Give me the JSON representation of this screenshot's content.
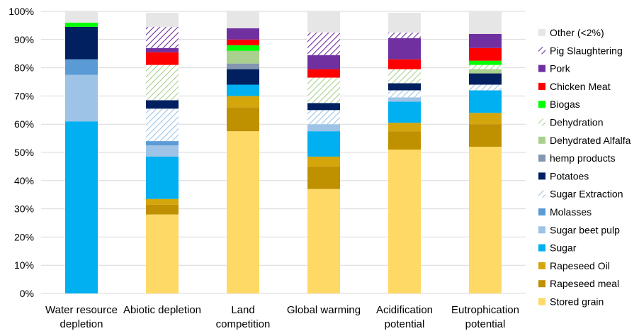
{
  "chart_data": {
    "type": "bar",
    "stacked": true,
    "normalized": true,
    "title": "",
    "xlabel": "",
    "ylabel": "",
    "ylim": [
      0,
      100
    ],
    "y_ticks": [
      "0%",
      "10%",
      "20%",
      "30%",
      "40%",
      "50%",
      "60%",
      "70%",
      "80%",
      "90%",
      "100%"
    ],
    "grid": "horizontal",
    "legend_position": "right",
    "categories": [
      [
        "Water resource",
        "depletion"
      ],
      [
        "Abiotic depletion"
      ],
      [
        "Land",
        "competition"
      ],
      [
        "Global warming"
      ],
      [
        "Acidification",
        "potential"
      ],
      [
        "Eutrophication",
        "potential"
      ]
    ],
    "series": [
      {
        "name": "Stored grain",
        "color": "#FFD966",
        "pattern": "solid",
        "values": [
          0,
          28,
          57.5,
          37,
          51,
          52
        ]
      },
      {
        "name": "Rapeseed meal",
        "color": "#BF9000",
        "pattern": "solid",
        "values": [
          0,
          3.5,
          8.5,
          8,
          6.5,
          8
        ]
      },
      {
        "name": "Rapeseed Oil",
        "color": "#D4A60C",
        "pattern": "solid",
        "values": [
          0,
          2,
          4,
          3.5,
          3,
          4
        ]
      },
      {
        "name": "Sugar",
        "color": "#00B0F0",
        "pattern": "solid",
        "values": [
          61,
          15,
          4,
          9,
          7.5,
          8
        ]
      },
      {
        "name": "Sugar beet pulp",
        "color": "#9DC3E6",
        "pattern": "solid",
        "values": [
          16.5,
          4,
          0,
          2.5,
          1.5,
          0
        ]
      },
      {
        "name": "Molasses",
        "color": "#5B9BD5",
        "pattern": "solid",
        "values": [
          5.5,
          1.5,
          0,
          0,
          0,
          0
        ]
      },
      {
        "name": "Sugar Extraction",
        "color": "#9DC3E6",
        "pattern": "hatch",
        "values": [
          0,
          11.5,
          0,
          5,
          2.5,
          2
        ]
      },
      {
        "name": "Potatoes",
        "color": "#002060",
        "pattern": "solid",
        "values": [
          11.5,
          3,
          5.5,
          2.5,
          2.5,
          4
        ]
      },
      {
        "name": "hemp products",
        "color": "#8497B0",
        "pattern": "solid",
        "values": [
          0,
          0,
          2,
          0,
          0,
          0
        ]
      },
      {
        "name": "Dehydrated Alfalfa",
        "color": "#A9D08E",
        "pattern": "solid",
        "values": [
          0,
          0,
          4.5,
          0,
          0,
          1.5
        ]
      },
      {
        "name": "Dehydration",
        "color": "#A9D08E",
        "pattern": "hatch",
        "values": [
          0,
          12.5,
          0,
          9,
          5,
          1.5
        ]
      },
      {
        "name": "Biogas",
        "color": "#00FF00",
        "pattern": "solid",
        "values": [
          1.5,
          0,
          2,
          0,
          0,
          1.5
        ]
      },
      {
        "name": "Chicken Meat",
        "color": "#FF0000",
        "pattern": "solid",
        "values": [
          0,
          4.5,
          2,
          3,
          3.5,
          4.5
        ]
      },
      {
        "name": "Pork",
        "color": "#7030A0",
        "pattern": "solid",
        "values": [
          0,
          1.5,
          4,
          5,
          7.5,
          5
        ]
      },
      {
        "name": "Pig Slaughtering",
        "color": "#7030A0",
        "pattern": "hatch",
        "values": [
          0,
          7.5,
          0,
          8,
          2,
          0
        ]
      },
      {
        "name": "Other (<2%)",
        "color": "#E7E6E6",
        "pattern": "solid",
        "values": [
          4,
          5,
          6,
          7.5,
          7,
          8
        ]
      }
    ]
  }
}
